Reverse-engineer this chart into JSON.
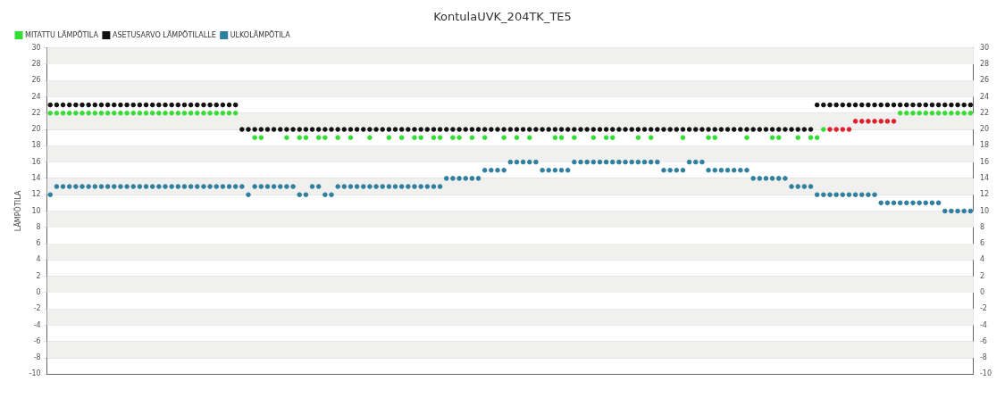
{
  "chart_data": {
    "type": "scatter",
    "title": "KontulaUVK_204TK_TE5",
    "ylabel": "LÄMPÖTILA",
    "categories": [
      null,
      null,
      null,
      null,
      null,
      null,
      null,
      null,
      null,
      null,
      null,
      null,
      null,
      null,
      null,
      null,
      null,
      null,
      null,
      null,
      null,
      null,
      null,
      null,
      null,
      null,
      null,
      null,
      null,
      null,
      null,
      null,
      null,
      null,
      null,
      null,
      null,
      null,
      null,
      null,
      null,
      null,
      null,
      null,
      null,
      null,
      null,
      null,
      null,
      null,
      null,
      null,
      null,
      null,
      null,
      null,
      null,
      null,
      null,
      null,
      null,
      null,
      null,
      null,
      null,
      null,
      null,
      null,
      null,
      null,
      null,
      null,
      null,
      null,
      null,
      null,
      null,
      null,
      null,
      null,
      null,
      null,
      null,
      null,
      null,
      null,
      null,
      null,
      null,
      null,
      null,
      null,
      null,
      null,
      null,
      null,
      null,
      null,
      null,
      null,
      null,
      null,
      null,
      null,
      null,
      null,
      null,
      null,
      null,
      null,
      null,
      null,
      null,
      null,
      null,
      null,
      null,
      null,
      null,
      null,
      null,
      null,
      null,
      null,
      null,
      null,
      null,
      null,
      null,
      null,
      null,
      null,
      null,
      null,
      null,
      null,
      null,
      null,
      null,
      null,
      null,
      null,
      null,
      null,
      null
    ],
    "series": [
      {
        "name": "MITATTU LÄMPÖTILA",
        "color": "#33dd33",
        "values": [
          22,
          22,
          22,
          22,
          22,
          22,
          22,
          22,
          22,
          22,
          22,
          22,
          22,
          22,
          22,
          22,
          22,
          22,
          22,
          22,
          22,
          22,
          22,
          22,
          22,
          22,
          22,
          22,
          22,
          22,
          null,
          null,
          19,
          19,
          null,
          null,
          null,
          19,
          null,
          19,
          19,
          null,
          19,
          19,
          null,
          19,
          null,
          19,
          null,
          null,
          19,
          null,
          null,
          19,
          null,
          19,
          null,
          19,
          19,
          null,
          19,
          19,
          null,
          19,
          19,
          null,
          19,
          null,
          19,
          null,
          null,
          19,
          null,
          19,
          null,
          19,
          null,
          null,
          null,
          19,
          19,
          null,
          19,
          null,
          null,
          19,
          null,
          19,
          19,
          null,
          null,
          null,
          19,
          null,
          19,
          null,
          null,
          null,
          null,
          19,
          null,
          null,
          null,
          19,
          19,
          null,
          null,
          null,
          null,
          19,
          null,
          null,
          null,
          19,
          19,
          null,
          null,
          19,
          null,
          19,
          19,
          20,
          20,
          20,
          20,
          20,
          21,
          21,
          21,
          21,
          21,
          21,
          21,
          22,
          22,
          22,
          22,
          22,
          22,
          22,
          22,
          22,
          22,
          22,
          22
        ],
        "colors": [
          "#33dd33",
          "#33dd33",
          "#33dd33",
          "#33dd33",
          "#33dd33",
          "#33dd33",
          "#33dd33",
          "#33dd33",
          "#33dd33",
          "#33dd33",
          "#33dd33",
          "#33dd33",
          "#33dd33",
          "#33dd33",
          "#33dd33",
          "#33dd33",
          "#33dd33",
          "#33dd33",
          "#33dd33",
          "#33dd33",
          "#33dd33",
          "#33dd33",
          "#33dd33",
          "#33dd33",
          "#33dd33",
          "#33dd33",
          "#33dd33",
          "#33dd33",
          "#33dd33",
          "#33dd33",
          "#33dd33",
          "#33dd33",
          "#33dd33",
          "#33dd33",
          "#33dd33",
          "#33dd33",
          "#33dd33",
          "#33dd33",
          "#33dd33",
          "#33dd33",
          "#33dd33",
          "#33dd33",
          "#33dd33",
          "#33dd33",
          "#33dd33",
          "#33dd33",
          "#33dd33",
          "#33dd33",
          "#33dd33",
          "#33dd33",
          "#33dd33",
          "#33dd33",
          "#33dd33",
          "#33dd33",
          "#33dd33",
          "#33dd33",
          "#33dd33",
          "#33dd33",
          "#33dd33",
          "#33dd33",
          "#33dd33",
          "#33dd33",
          "#33dd33",
          "#33dd33",
          "#33dd33",
          "#33dd33",
          "#33dd33",
          "#33dd33",
          "#33dd33",
          "#33dd33",
          "#33dd33",
          "#33dd33",
          "#33dd33",
          "#33dd33",
          "#33dd33",
          "#33dd33",
          "#33dd33",
          "#33dd33",
          "#33dd33",
          "#33dd33",
          "#33dd33",
          "#33dd33",
          "#33dd33",
          "#33dd33",
          "#33dd33",
          "#33dd33",
          "#33dd33",
          "#33dd33",
          "#33dd33",
          "#33dd33",
          "#33dd33",
          "#33dd33",
          "#33dd33",
          "#33dd33",
          "#33dd33",
          "#33dd33",
          "#33dd33",
          "#33dd33",
          "#33dd33",
          "#33dd33",
          "#33dd33",
          "#33dd33",
          "#33dd33",
          "#33dd33",
          "#33dd33",
          "#33dd33",
          "#33dd33",
          "#33dd33",
          "#33dd33",
          "#33dd33",
          "#33dd33",
          "#33dd33",
          "#33dd33",
          "#33dd33",
          "#33dd33",
          "#33dd33",
          "#33dd33",
          "#33dd33",
          "#33dd33",
          "#33dd33",
          "#33dd33",
          "#33dd33",
          "#e0202a",
          "#e0202a",
          "#e0202a",
          "#e0202a",
          "#e0202a",
          "#e0202a",
          "#e0202a",
          "#e0202a",
          "#e0202a",
          "#e0202a",
          "#e0202a",
          "#33dd33",
          "#33dd33",
          "#33dd33",
          "#33dd33",
          "#33dd33",
          "#33dd33",
          "#33dd33",
          "#33dd33",
          "#33dd33",
          "#33dd33",
          "#33dd33",
          "#33dd33"
        ]
      },
      {
        "name": "ASETUSARVO LÄMPÖTILALLE",
        "color": "#111111",
        "values": [
          23,
          23,
          23,
          23,
          23,
          23,
          23,
          23,
          23,
          23,
          23,
          23,
          23,
          23,
          23,
          23,
          23,
          23,
          23,
          23,
          23,
          23,
          23,
          23,
          23,
          23,
          23,
          23,
          23,
          23,
          20,
          20,
          20,
          20,
          20,
          20,
          20,
          20,
          20,
          20,
          20,
          20,
          20,
          20,
          20,
          20,
          20,
          20,
          20,
          20,
          20,
          20,
          20,
          20,
          20,
          20,
          20,
          20,
          20,
          20,
          20,
          20,
          20,
          20,
          20,
          20,
          20,
          20,
          20,
          20,
          20,
          20,
          20,
          20,
          20,
          20,
          20,
          20,
          20,
          20,
          20,
          20,
          20,
          20,
          20,
          20,
          20,
          20,
          20,
          20,
          20,
          20,
          20,
          20,
          20,
          20,
          20,
          20,
          20,
          20,
          20,
          20,
          20,
          20,
          20,
          20,
          20,
          20,
          20,
          20,
          20,
          20,
          20,
          20,
          20,
          20,
          20,
          20,
          20,
          20,
          23,
          23,
          23,
          23,
          23,
          23,
          23,
          23,
          23,
          23,
          23,
          23,
          23,
          23,
          23,
          23,
          23,
          23,
          23,
          23,
          23,
          23,
          23,
          23,
          23
        ]
      },
      {
        "name": "ULKOLÄMPÖTILA",
        "color": "#2f7fa0",
        "values": [
          12,
          13,
          13,
          13,
          13,
          13,
          13,
          13,
          13,
          13,
          13,
          13,
          13,
          13,
          13,
          13,
          13,
          13,
          13,
          13,
          13,
          13,
          13,
          13,
          13,
          13,
          13,
          13,
          13,
          13,
          13,
          12,
          13,
          13,
          13,
          13,
          13,
          13,
          13,
          12,
          12,
          13,
          13,
          12,
          12,
          13,
          13,
          13,
          13,
          13,
          13,
          13,
          13,
          13,
          13,
          13,
          13,
          13,
          13,
          13,
          13,
          13,
          14,
          14,
          14,
          14,
          14,
          14,
          15,
          15,
          15,
          15,
          16,
          16,
          16,
          16,
          16,
          15,
          15,
          15,
          15,
          15,
          16,
          16,
          16,
          16,
          16,
          16,
          16,
          16,
          16,
          16,
          16,
          16,
          16,
          16,
          15,
          15,
          15,
          15,
          16,
          16,
          16,
          15,
          15,
          15,
          15,
          15,
          15,
          15,
          14,
          14,
          14,
          14,
          14,
          14,
          13,
          13,
          13,
          13,
          12,
          12,
          12,
          12,
          12,
          12,
          12,
          12,
          12,
          12,
          11,
          11,
          11,
          11,
          11,
          11,
          11,
          11,
          11,
          11,
          10,
          10,
          10,
          10,
          10
        ]
      }
    ],
    "ylim": [
      -10,
      30
    ],
    "yticks": [
      -10,
      -8,
      -6,
      -4,
      -2,
      0,
      2,
      4,
      6,
      8,
      10,
      12,
      14,
      16,
      18,
      20,
      22,
      24,
      26,
      28,
      30
    ],
    "y2lim": [
      -10,
      30
    ],
    "y2ticks": [
      -10,
      -8,
      -6,
      -4,
      -2,
      0,
      2,
      4,
      6,
      8,
      10,
      12,
      14,
      16,
      18,
      20,
      22,
      24,
      26,
      28,
      30
    ],
    "grid": "y",
    "legend": "top left",
    "marker": "circle"
  }
}
